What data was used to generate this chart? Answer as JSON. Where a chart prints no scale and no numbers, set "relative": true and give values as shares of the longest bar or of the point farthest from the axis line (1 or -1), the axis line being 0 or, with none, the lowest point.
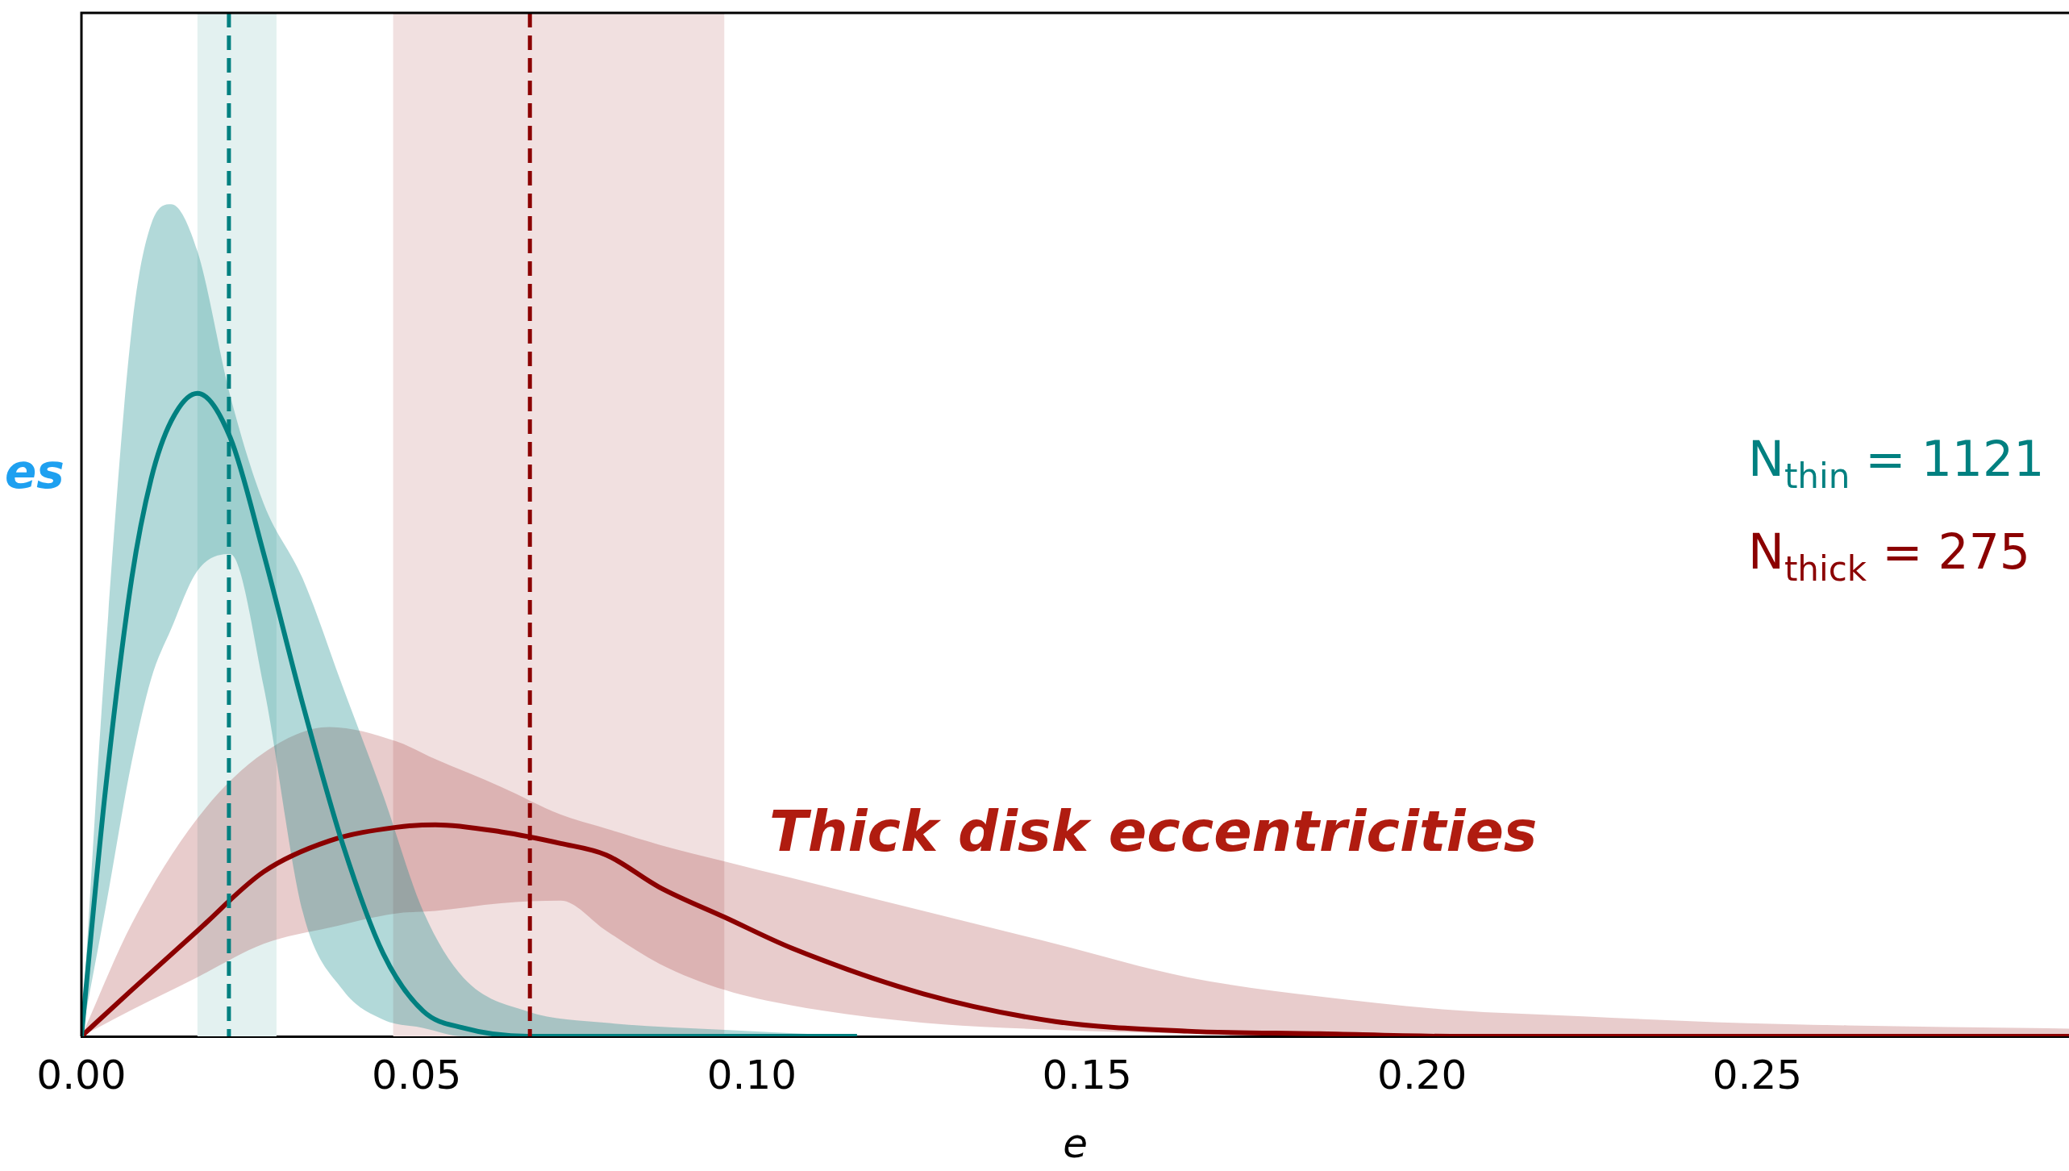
{
  "chart_data": {
    "type": "line",
    "relative": true,
    "xlabel": "e",
    "xlim": [
      0,
      0.2965
    ],
    "xticks": [
      {
        "value": 0,
        "label": "0.00"
      },
      {
        "value": 0.05,
        "label": "0.05"
      },
      {
        "value": 0.1,
        "label": "0.10"
      },
      {
        "value": 0.15,
        "label": "0.15"
      },
      {
        "value": 0.2,
        "label": "0.20"
      },
      {
        "value": 0.25,
        "label": "0.25"
      }
    ],
    "grid": false,
    "legend": false,
    "tick_labels": "x",
    "line_style": "solid",
    "marker": "none",
    "series": [
      {
        "color": "#008080",
        "x": [
          0,
          0.0035,
          0.0075,
          0.0104,
          0.0134,
          0.0173,
          0.0222,
          0.0272,
          0.033,
          0.039,
          0.045,
          0.051,
          0.057,
          0.0665,
          0.0783,
          0.096,
          0.1157
        ],
        "values": [
          0,
          0.375,
          0.712,
          0.867,
          0.957,
          1,
          0.931,
          0.75,
          0.517,
          0.298,
          0.129,
          0.039,
          0.013,
          0,
          0,
          0,
          0
        ],
        "upper": [
          0,
          0.582,
          1.1,
          1.263,
          1.294,
          1.221,
          0.996,
          0.828,
          0.712,
          0.543,
          0.375,
          0.194,
          0.091,
          0.039,
          0.021,
          0.01,
          0
        ],
        "lower": [
          0,
          0.194,
          0.427,
          0.556,
          0.634,
          0.724,
          0.75,
          0.543,
          0.194,
          0.072,
          0.026,
          0.013,
          0,
          0,
          0,
          0,
          0
        ]
      },
      {
        "color": "#8b0000",
        "x": [
          0,
          0.0075,
          0.0173,
          0.0272,
          0.037,
          0.0469,
          0.0528,
          0.0626,
          0.0715,
          0.0783,
          0.0862,
          0.096,
          0.106,
          0.1256,
          0.1453,
          0.165,
          0.1846,
          0.2043,
          0.224,
          0.2437,
          0.2634,
          0.2965
        ],
        "values": [
          0,
          0.072,
          0.164,
          0.256,
          0.304,
          0.325,
          0.329,
          0.318,
          0.3,
          0.282,
          0.232,
          0.185,
          0.137,
          0.066,
          0.023,
          0.008,
          0.004,
          0,
          0,
          0,
          0,
          0
        ],
        "upper": [
          0,
          0.175,
          0.339,
          0.441,
          0.481,
          0.459,
          0.431,
          0.388,
          0.345,
          0.323,
          0.298,
          0.272,
          0.246,
          0.195,
          0.144,
          0.092,
          0.062,
          0.041,
          0.031,
          0.022,
          0.017,
          0.012
        ],
        "lower": [
          0,
          0.041,
          0.092,
          0.144,
          0.169,
          0.191,
          0.195,
          0.207,
          0.211,
          0.164,
          0.113,
          0.072,
          0.048,
          0.021,
          0.01,
          0.004,
          0,
          0,
          0,
          0,
          0,
          0
        ]
      }
    ],
    "ref_lines": [
      {
        "axis": "x",
        "value": 0.022,
        "color": "#008080",
        "line_style": "dashed"
      },
      {
        "axis": "x",
        "value": 0.0669,
        "color": "#8b0000",
        "line_style": "dashed"
      }
    ],
    "bands": [
      {
        "axis": "x",
        "from": 0.0173,
        "to": 0.0291,
        "color": "#e3f1f0"
      },
      {
        "axis": "x",
        "from": 0.0465,
        "to": 0.0959,
        "color": "#f1e0e0"
      }
    ],
    "annotations": [
      "es",
      "Thick disk eccentricities",
      "N$_{thin}$ = 1121",
      "N$_{thick}$ = 275"
    ]
  }
}
